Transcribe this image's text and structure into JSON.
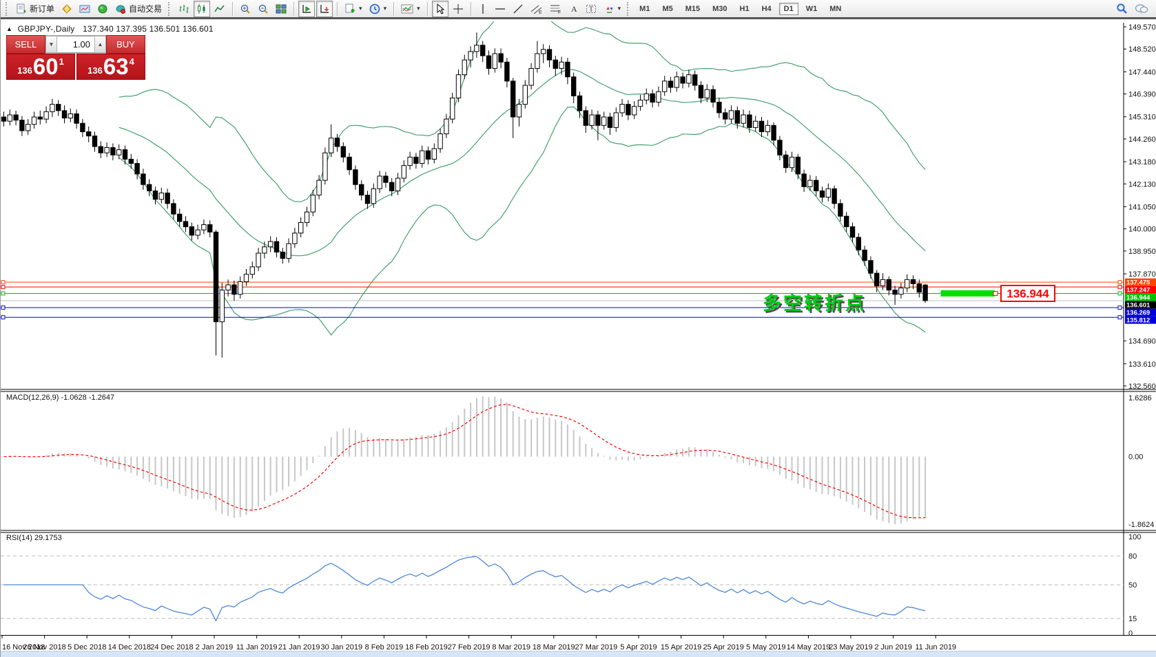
{
  "toolbar": {
    "new_order_label": "新订单",
    "autotrading_label": "自动交易",
    "timeframes": [
      "M1",
      "M5",
      "M15",
      "M30",
      "H1",
      "H4",
      "D1",
      "W1",
      "MN"
    ],
    "active_timeframe": "D1"
  },
  "chart_header": {
    "expand_arrow": "▲",
    "symbol": "GBPJPY-,Daily",
    "ohlc": "137.340 137.395 136.501 136.601"
  },
  "trade_panel": {
    "sell_label": "SELL",
    "buy_label": "BUY",
    "volume": "1.00",
    "spin_down": "▼",
    "spin_up": "▲",
    "sell_small": "136",
    "sell_big": "60",
    "sell_sup": "1",
    "buy_small": "136",
    "buy_big": "63",
    "buy_sup": "4"
  },
  "macd_label": "MACD(12,26,9) -1.0628 -1.2647",
  "rsi_label": "RSI(14) 29.1753",
  "annotation": {
    "text": "多空转折点",
    "color": "#00cc16"
  },
  "callout": {
    "text": "136.944",
    "color": "#ff0000"
  },
  "chart_data": {
    "type": "candlestick",
    "symbol": "GBPJPY",
    "timeframe": "Daily",
    "price_axis": {
      "min": 132.56,
      "max": 149.57,
      "ticks": [
        149.57,
        148.52,
        147.44,
        146.39,
        145.31,
        144.26,
        143.18,
        142.13,
        141.05,
        140.0,
        138.95,
        137.87,
        134.69,
        133.61,
        132.56
      ]
    },
    "dates": [
      "16 Nov 2018",
      "26 Nov 2018",
      "5 Dec 2018",
      "14 Dec 2018",
      "24 Dec 2018",
      "2 Jan 2019",
      "11 Jan 2019",
      "21 Jan 2019",
      "30 Jan 2019",
      "8 Feb 2019",
      "18 Feb 2019",
      "27 Feb 2019",
      "8 Mar 2019",
      "18 Mar 2019",
      "27 Mar 2019",
      "5 Apr 2019",
      "15 Apr 2019",
      "25 Apr 2019",
      "5 May 2019",
      "14 May 2019",
      "23 May 2019",
      "2 Jun 2019",
      "11 Jun 2019"
    ],
    "bars_per_label": 7,
    "candles": [
      [
        145.3,
        145.55,
        144.85,
        145.1
      ],
      [
        145.1,
        145.65,
        144.9,
        145.4
      ],
      [
        145.4,
        145.6,
        144.9,
        145.15
      ],
      [
        145.15,
        145.35,
        144.4,
        144.65
      ],
      [
        144.65,
        145.2,
        144.45,
        144.95
      ],
      [
        144.95,
        145.55,
        144.75,
        145.3
      ],
      [
        145.3,
        145.6,
        144.95,
        145.2
      ],
      [
        145.2,
        145.8,
        145.0,
        145.55
      ],
      [
        145.55,
        146.15,
        145.3,
        145.9
      ],
      [
        145.9,
        146.1,
        145.35,
        145.6
      ],
      [
        145.6,
        145.85,
        145.0,
        145.25
      ],
      [
        145.25,
        145.7,
        145.05,
        145.45
      ],
      [
        145.45,
        145.65,
        144.75,
        145.0
      ],
      [
        145.0,
        145.2,
        144.35,
        144.6
      ],
      [
        144.6,
        144.85,
        144.1,
        144.4
      ],
      [
        144.4,
        144.6,
        143.65,
        143.9
      ],
      [
        143.9,
        144.15,
        143.35,
        143.6
      ],
      [
        143.6,
        144.1,
        143.4,
        143.85
      ],
      [
        143.85,
        144.05,
        143.25,
        143.5
      ],
      [
        143.5,
        144.0,
        143.3,
        143.75
      ],
      [
        143.75,
        143.95,
        143.05,
        143.3
      ],
      [
        143.3,
        143.55,
        142.85,
        143.1
      ],
      [
        143.1,
        143.3,
        142.35,
        142.6
      ],
      [
        142.6,
        142.85,
        141.85,
        142.1
      ],
      [
        142.1,
        142.35,
        141.55,
        141.8
      ],
      [
        141.8,
        142.0,
        141.15,
        141.4
      ],
      [
        141.4,
        141.95,
        141.2,
        141.7
      ],
      [
        141.7,
        141.9,
        140.95,
        141.2
      ],
      [
        141.2,
        141.4,
        140.45,
        140.7
      ],
      [
        140.7,
        140.95,
        140.1,
        140.35
      ],
      [
        140.35,
        140.6,
        139.85,
        140.1
      ],
      [
        140.1,
        140.3,
        139.45,
        139.7
      ],
      [
        139.7,
        140.2,
        139.5,
        139.95
      ],
      [
        139.95,
        140.45,
        139.75,
        140.2
      ],
      [
        140.2,
        140.4,
        139.6,
        139.85
      ],
      [
        139.85,
        139.95,
        134.0,
        135.6
      ],
      [
        135.6,
        137.45,
        133.9,
        137.1
      ],
      [
        137.1,
        137.6,
        136.8,
        137.35
      ],
      [
        137.35,
        137.55,
        136.6,
        136.9
      ],
      [
        136.9,
        137.75,
        136.7,
        137.5
      ],
      [
        137.5,
        138.1,
        137.3,
        137.85
      ],
      [
        137.85,
        138.45,
        137.65,
        138.2
      ],
      [
        138.2,
        139.1,
        138.0,
        138.85
      ],
      [
        138.85,
        139.4,
        138.6,
        139.15
      ],
      [
        139.15,
        139.65,
        138.9,
        139.4
      ],
      [
        139.4,
        139.6,
        138.65,
        138.9
      ],
      [
        138.9,
        139.1,
        138.35,
        138.6
      ],
      [
        138.6,
        139.55,
        138.4,
        139.3
      ],
      [
        139.3,
        140.05,
        139.1,
        139.8
      ],
      [
        139.8,
        140.55,
        139.6,
        140.3
      ],
      [
        140.3,
        141.05,
        140.1,
        140.8
      ],
      [
        140.8,
        141.85,
        140.6,
        141.6
      ],
      [
        141.6,
        142.55,
        141.4,
        142.3
      ],
      [
        142.3,
        143.85,
        142.1,
        143.6
      ],
      [
        143.6,
        144.95,
        143.4,
        144.3
      ],
      [
        144.3,
        144.5,
        143.65,
        143.9
      ],
      [
        143.9,
        144.1,
        143.15,
        143.4
      ],
      [
        143.4,
        143.6,
        142.55,
        142.8
      ],
      [
        142.8,
        143.0,
        141.85,
        142.1
      ],
      [
        142.1,
        142.3,
        141.35,
        141.6
      ],
      [
        141.6,
        141.8,
        140.95,
        141.2
      ],
      [
        141.2,
        142.15,
        141.0,
        141.9
      ],
      [
        141.9,
        142.75,
        141.7,
        142.5
      ],
      [
        142.5,
        142.7,
        141.95,
        142.2
      ],
      [
        142.2,
        142.4,
        141.55,
        141.8
      ],
      [
        141.8,
        142.65,
        141.6,
        142.4
      ],
      [
        142.4,
        143.25,
        142.2,
        143.0
      ],
      [
        143.0,
        143.65,
        142.8,
        143.4
      ],
      [
        143.4,
        143.6,
        142.85,
        143.1
      ],
      [
        143.1,
        143.95,
        142.9,
        143.7
      ],
      [
        143.7,
        143.9,
        143.05,
        143.3
      ],
      [
        143.3,
        144.05,
        143.1,
        143.8
      ],
      [
        143.8,
        144.75,
        143.6,
        144.5
      ],
      [
        144.5,
        145.45,
        144.3,
        145.2
      ],
      [
        145.2,
        146.45,
        145.0,
        146.2
      ],
      [
        146.2,
        147.55,
        146.0,
        147.3
      ],
      [
        147.3,
        148.25,
        147.1,
        148.0
      ],
      [
        148.0,
        148.65,
        147.65,
        148.4
      ],
      [
        148.4,
        149.3,
        148.1,
        148.7
      ],
      [
        148.7,
        148.9,
        147.9,
        148.2
      ],
      [
        148.2,
        148.45,
        147.3,
        147.6
      ],
      [
        147.6,
        148.55,
        147.4,
        148.3
      ],
      [
        148.3,
        148.55,
        147.6,
        147.9
      ],
      [
        147.9,
        148.1,
        146.7,
        147.0
      ],
      [
        147.0,
        147.15,
        144.3,
        145.3
      ],
      [
        145.3,
        146.15,
        144.85,
        145.9
      ],
      [
        145.9,
        147.05,
        145.7,
        146.8
      ],
      [
        146.8,
        147.85,
        146.6,
        147.6
      ],
      [
        147.6,
        148.9,
        147.4,
        148.3
      ],
      [
        148.3,
        148.75,
        147.85,
        148.5
      ],
      [
        148.5,
        148.7,
        147.65,
        148.0
      ],
      [
        148.0,
        148.2,
        147.25,
        147.6
      ],
      [
        147.6,
        148.15,
        147.3,
        147.9
      ],
      [
        147.9,
        148.1,
        146.85,
        147.2
      ],
      [
        147.2,
        147.4,
        145.95,
        146.3
      ],
      [
        146.3,
        146.5,
        145.25,
        145.6
      ],
      [
        145.6,
        145.8,
        144.55,
        144.9
      ],
      [
        144.9,
        145.65,
        144.7,
        145.4
      ],
      [
        145.4,
        145.6,
        144.2,
        144.9
      ],
      [
        144.9,
        145.55,
        144.7,
        145.3
      ],
      [
        145.3,
        145.5,
        144.45,
        144.8
      ],
      [
        144.8,
        145.75,
        144.6,
        145.5
      ],
      [
        145.5,
        146.15,
        145.3,
        145.9
      ],
      [
        145.9,
        146.1,
        145.15,
        145.4
      ],
      [
        145.4,
        146.05,
        145.2,
        145.8
      ],
      [
        145.8,
        146.35,
        145.6,
        146.1
      ],
      [
        146.1,
        146.65,
        145.9,
        146.4
      ],
      [
        146.4,
        146.6,
        145.75,
        146.0
      ],
      [
        146.0,
        146.75,
        145.8,
        146.5
      ],
      [
        146.5,
        147.25,
        146.3,
        147.0
      ],
      [
        147.0,
        147.2,
        146.45,
        146.7
      ],
      [
        146.7,
        147.45,
        146.5,
        147.2
      ],
      [
        147.2,
        147.4,
        146.65,
        146.9
      ],
      [
        146.9,
        147.55,
        146.7,
        147.3
      ],
      [
        147.3,
        147.5,
        146.55,
        146.8
      ],
      [
        146.8,
        147.0,
        145.95,
        146.2
      ],
      [
        146.2,
        146.85,
        146.0,
        146.6
      ],
      [
        146.6,
        146.8,
        145.75,
        146.0
      ],
      [
        146.0,
        146.2,
        145.25,
        145.5
      ],
      [
        145.5,
        145.7,
        144.95,
        145.2
      ],
      [
        145.2,
        145.85,
        145.0,
        145.6
      ],
      [
        145.6,
        145.8,
        144.75,
        145.0
      ],
      [
        145.0,
        145.65,
        144.8,
        145.4
      ],
      [
        145.4,
        145.6,
        144.55,
        144.8
      ],
      [
        144.8,
        145.35,
        144.6,
        145.1
      ],
      [
        145.1,
        145.3,
        144.35,
        144.6
      ],
      [
        144.6,
        145.15,
        144.4,
        144.9
      ],
      [
        144.9,
        145.05,
        143.95,
        144.2
      ],
      [
        144.2,
        144.4,
        143.25,
        143.5
      ],
      [
        143.5,
        143.7,
        142.65,
        142.9
      ],
      [
        142.9,
        143.65,
        142.7,
        143.4
      ],
      [
        143.4,
        143.55,
        142.35,
        142.6
      ],
      [
        142.6,
        142.8,
        141.75,
        142.0
      ],
      [
        142.0,
        142.55,
        141.8,
        142.3
      ],
      [
        142.3,
        142.5,
        141.55,
        141.8
      ],
      [
        141.8,
        142.0,
        141.25,
        141.5
      ],
      [
        141.5,
        142.15,
        141.3,
        141.9
      ],
      [
        141.9,
        142.05,
        140.95,
        141.2
      ],
      [
        141.2,
        141.4,
        140.35,
        140.6
      ],
      [
        140.6,
        140.8,
        139.85,
        140.1
      ],
      [
        140.1,
        140.3,
        139.35,
        139.6
      ],
      [
        139.6,
        139.8,
        138.75,
        139.0
      ],
      [
        139.0,
        139.2,
        138.25,
        138.5
      ],
      [
        138.5,
        138.7,
        137.65,
        137.9
      ],
      [
        137.9,
        138.05,
        137.0,
        137.3
      ],
      [
        137.3,
        137.9,
        137.1,
        137.6
      ],
      [
        137.6,
        137.75,
        136.85,
        137.1
      ],
      [
        137.1,
        137.3,
        136.4,
        136.9
      ],
      [
        136.9,
        137.45,
        136.7,
        137.2
      ],
      [
        137.2,
        137.85,
        137.0,
        137.6
      ],
      [
        137.6,
        137.8,
        137.15,
        137.4
      ],
      [
        137.4,
        137.6,
        136.75,
        137.0
      ],
      [
        137.34,
        137.395,
        136.501,
        136.601
      ]
    ],
    "bollinger": {
      "period": 20,
      "deviation": 2,
      "color": "#44a06e"
    },
    "hlines": [
      {
        "price": 137.475,
        "label": "137.475",
        "color": "#ff4500",
        "tag_bg": "#ff4500",
        "handles": true
      },
      {
        "price": 137.247,
        "label": "137.247",
        "color": "#ff0000",
        "tag_bg": "#ff0000",
        "handles": true
      },
      {
        "price": 136.944,
        "label": "136.944",
        "color": "#00c000",
        "tag_bg": "#00c000",
        "handles": true
      },
      {
        "price": 136.601,
        "label": "136.601",
        "color": "#bcbcbc",
        "tag_bg": "#000000",
        "handles": false
      },
      {
        "price": 136.269,
        "label": "136.269",
        "color": "#0000dd",
        "tag_bg": "#0000dd",
        "handles": true
      },
      {
        "price": 135.812,
        "label": "135.812",
        "color": "#0000dd",
        "tag_bg": "#0000dd",
        "handles": true
      }
    ],
    "highlight_bar": {
      "price": 136.944,
      "x1_bar": 155,
      "x2_bar": 163,
      "color": "#00e000"
    },
    "macd": {
      "params": "12,26,9",
      "value": -1.0628,
      "signal_value": -1.2647,
      "scale_top": "1.6286",
      "scale_zero": "0.00",
      "scale_bottom": "-1.8624",
      "hist_color": "#c6c6c6",
      "signal_color": "#ff0000"
    },
    "rsi": {
      "period": 14,
      "value": 29.1753,
      "color": "#4a86d8",
      "axis_labels": [
        [
          100,
          "100"
        ],
        [
          80,
          "80"
        ],
        [
          50,
          "50"
        ],
        [
          15,
          "15"
        ],
        [
          0,
          "0"
        ]
      ],
      "dashed_levels": [
        80,
        50,
        15
      ]
    }
  }
}
